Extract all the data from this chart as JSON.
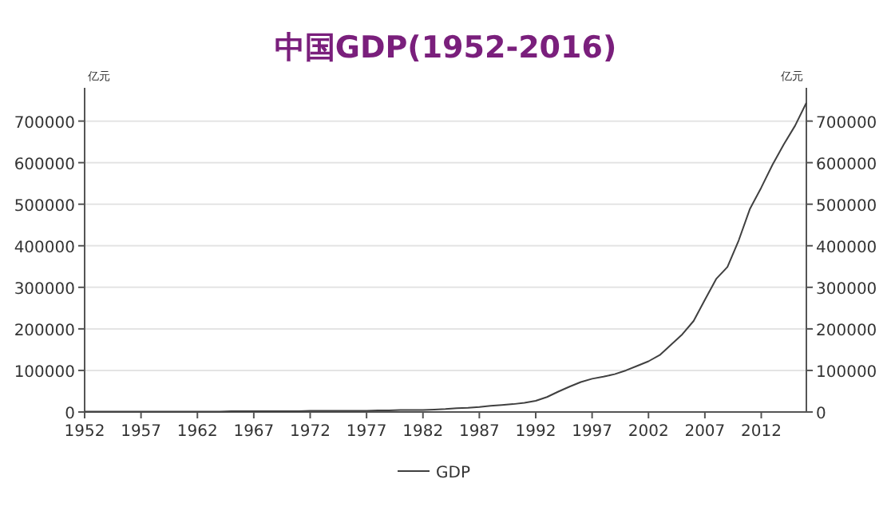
{
  "chart_data": {
    "type": "line",
    "title": "中国GDP(1952-2016)",
    "ylabel": "亿元",
    "y2label": "亿元",
    "x": [
      1952,
      1953,
      1954,
      1955,
      1956,
      1957,
      1958,
      1959,
      1960,
      1961,
      1962,
      1963,
      1964,
      1965,
      1966,
      1967,
      1968,
      1969,
      1970,
      1971,
      1972,
      1973,
      1974,
      1975,
      1976,
      1977,
      1978,
      1979,
      1980,
      1981,
      1982,
      1983,
      1984,
      1985,
      1986,
      1987,
      1988,
      1989,
      1990,
      1991,
      1992,
      1993,
      1994,
      1995,
      1996,
      1997,
      1998,
      1999,
      2000,
      2001,
      2002,
      2003,
      2004,
      2005,
      2006,
      2007,
      2008,
      2009,
      2010,
      2011,
      2012,
      2013,
      2014,
      2015,
      2016
    ],
    "series": [
      {
        "name": "GDP",
        "color": "#404040",
        "values": [
          1000,
          1000,
          1000,
          1000,
          1000,
          1000,
          1000,
          1000,
          1000,
          1000,
          1000,
          1000,
          1000,
          2000,
          2000,
          2000,
          2000,
          2000,
          2000,
          2000,
          3000,
          3000,
          3000,
          3000,
          3000,
          3000,
          4000,
          4000,
          5000,
          5000,
          5000,
          6000,
          7000,
          9000,
          10000,
          12000,
          15000,
          17000,
          19000,
          22000,
          27000,
          36000,
          49000,
          61000,
          72000,
          80000,
          85000,
          91000,
          100000,
          111000,
          122000,
          137000,
          162000,
          187000,
          219000,
          270000,
          320000,
          349000,
          413000,
          489000,
          540000,
          595000,
          644000,
          689000,
          744000
        ]
      }
    ],
    "xlim": [
      1952,
      2016
    ],
    "xticks": [
      1952,
      1957,
      1962,
      1967,
      1972,
      1977,
      1982,
      1987,
      1992,
      1997,
      2002,
      2007,
      2012
    ],
    "ylim": [
      0,
      780000
    ],
    "yticks": [
      0,
      100000,
      200000,
      300000,
      400000,
      500000,
      600000,
      700000
    ],
    "y2lim": [
      0,
      780000
    ],
    "y2ticks": [
      0,
      100000,
      200000,
      300000,
      400000,
      500000,
      600000,
      700000
    ],
    "grid": "y",
    "legend": "bottom",
    "line_style": "solid",
    "marker": "none"
  }
}
